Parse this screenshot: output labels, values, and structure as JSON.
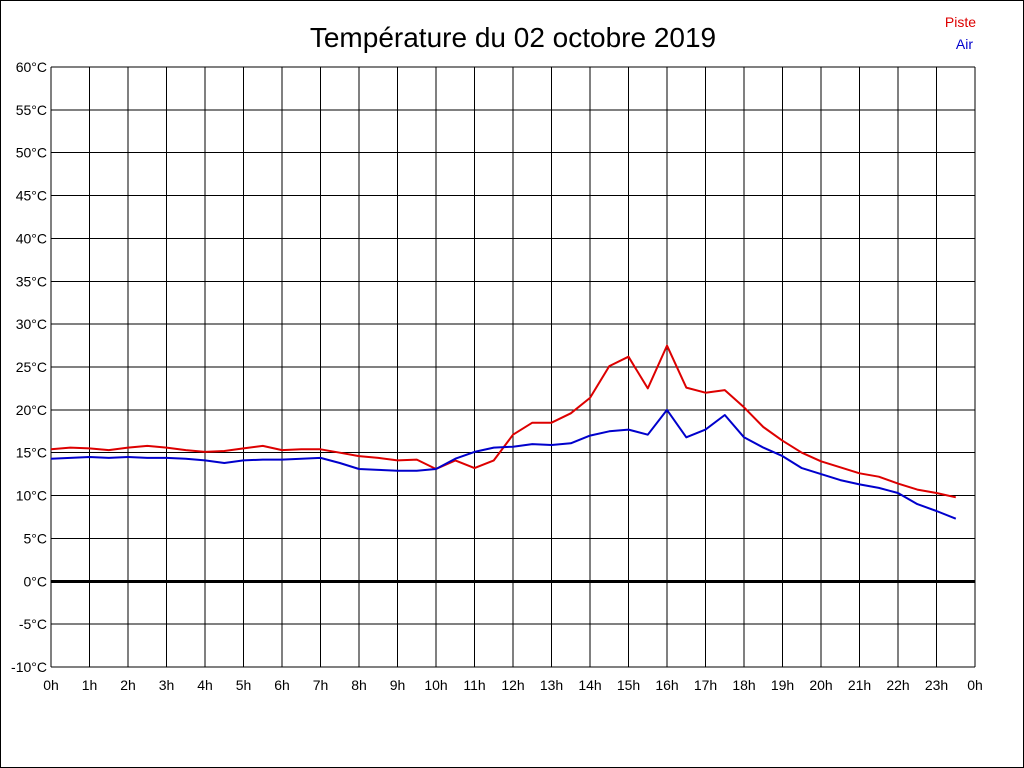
{
  "chart_data": {
    "type": "line",
    "title": "Température du 02 octobre 2019",
    "xlabel": "",
    "ylabel": "",
    "ylim": [
      -10,
      60
    ],
    "yticks": [
      60,
      55,
      50,
      45,
      40,
      35,
      30,
      25,
      20,
      15,
      10,
      5,
      0,
      -5,
      -10
    ],
    "ytick_labels": [
      "60°C",
      "55°C",
      "50°C",
      "45°C",
      "40°C",
      "35°C",
      "30°C",
      "25°C",
      "20°C",
      "15°C",
      "10°C",
      "5°C",
      "0°C",
      "-5°C",
      "-10°C"
    ],
    "xlim": [
      0,
      24
    ],
    "xtick_labels": [
      "0h",
      "1h",
      "2h",
      "3h",
      "4h",
      "5h",
      "6h",
      "7h",
      "8h",
      "9h",
      "10h",
      "11h",
      "12h",
      "13h",
      "14h",
      "15h",
      "16h",
      "17h",
      "18h",
      "19h",
      "20h",
      "21h",
      "22h",
      "23h",
      "0h"
    ],
    "grid": true,
    "zero_line": true,
    "legend_position": "top-right",
    "x": [
      0,
      0.5,
      1,
      1.5,
      2,
      2.5,
      3,
      3.5,
      4,
      4.5,
      5,
      5.5,
      6,
      6.5,
      7,
      7.5,
      8,
      8.5,
      9,
      9.5,
      10,
      10.5,
      11,
      11.5,
      12,
      12.5,
      13,
      13.5,
      14,
      14.5,
      15,
      15.5,
      16,
      16.5,
      17,
      17.5,
      18,
      18.5,
      19,
      19.5,
      20,
      20.5,
      21,
      21.5,
      22,
      22.5,
      23,
      23.5
    ],
    "series": [
      {
        "name": "Piste",
        "color": "#dd0000",
        "values": [
          15.4,
          15.6,
          15.5,
          15.3,
          15.6,
          15.8,
          15.6,
          15.3,
          15.1,
          15.2,
          15.5,
          15.8,
          15.3,
          15.4,
          15.4,
          15.0,
          14.6,
          14.4,
          14.1,
          14.2,
          13.1,
          14.1,
          13.2,
          14.1,
          17.1,
          18.5,
          18.5,
          19.6,
          21.4,
          25.1,
          26.2,
          22.5,
          27.5,
          22.6,
          22.0,
          22.3,
          20.3,
          18.0,
          16.4,
          15.0,
          14.0,
          13.3,
          12.6,
          12.2,
          11.4,
          10.7,
          10.3,
          9.8
        ]
      },
      {
        "name": "Air",
        "color": "#0000cc",
        "values": [
          14.3,
          14.4,
          14.5,
          14.4,
          14.5,
          14.4,
          14.4,
          14.3,
          14.1,
          13.8,
          14.1,
          14.2,
          14.2,
          14.3,
          14.4,
          13.8,
          13.1,
          13.0,
          12.9,
          12.9,
          13.1,
          14.3,
          15.1,
          15.6,
          15.7,
          16.0,
          15.9,
          16.1,
          17.0,
          17.5,
          17.7,
          17.1,
          20.0,
          16.8,
          17.7,
          19.4,
          16.8,
          15.6,
          14.6,
          13.2,
          12.5,
          11.8,
          11.3,
          10.9,
          10.3,
          9.0,
          8.2,
          7.3
        ]
      }
    ]
  }
}
